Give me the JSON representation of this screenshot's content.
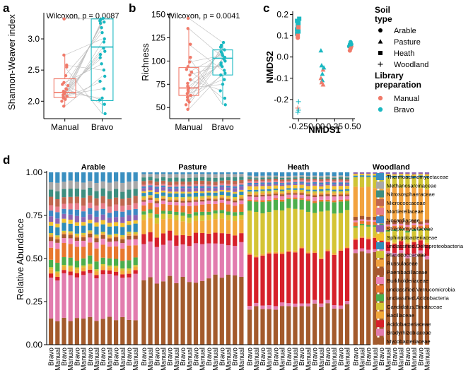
{
  "panel_labels": {
    "a": "a",
    "b": "b",
    "c": "c",
    "d": "d"
  },
  "colors": {
    "manual": "#F07A6A",
    "bravo": "#1AB8C1",
    "grey_lines": "#BDBDBD"
  },
  "chart_data": [
    {
      "panel": "a",
      "type": "box",
      "ylabel": "Shannon-Weaver index",
      "annotation": "Wilcoxon, p = 0.0087",
      "categories": [
        "Manual",
        "Bravo"
      ],
      "ylim": [
        1.72,
        3.42
      ],
      "yticks": [
        2.0,
        2.5,
        3.0
      ],
      "ytick_labels": [
        "2.0",
        "2.5",
        "3.0"
      ],
      "boxes": [
        {
          "name": "Manual",
          "min": 1.92,
          "q1": 2.06,
          "median": 2.14,
          "q3": 2.36,
          "max": 2.75
        },
        {
          "name": "Bravo",
          "min": 1.8,
          "q1": 2.01,
          "median": 2.87,
          "q3": 3.32,
          "max": 3.33
        }
      ],
      "points": {
        "Manual": [
          3.32,
          2.74,
          2.58,
          2.55,
          2.41,
          2.3,
          2.27,
          2.25,
          2.2,
          2.19,
          2.16,
          2.15,
          2.14,
          2.13,
          2.12,
          2.1,
          2.08,
          2.07,
          2.05,
          2.03,
          2.0,
          1.92
        ],
        "Bravo": [
          3.33,
          3.31,
          3.29,
          3.27,
          3.25,
          3.18,
          3.1,
          3.0,
          2.95,
          2.85,
          2.8,
          2.75,
          2.7,
          2.6,
          2.5,
          2.4,
          2.32,
          2.2,
          2.05,
          2.02,
          1.95,
          1.8
        ]
      }
    },
    {
      "panel": "b",
      "type": "box",
      "ylabel": "Richness",
      "annotation": "Wilcoxon, p = 0.0041",
      "categories": [
        "Manual",
        "Bravo"
      ],
      "ylim": [
        38,
        152
      ],
      "yticks": [
        50,
        75,
        100,
        125,
        150
      ],
      "ytick_labels": [
        "50",
        "75",
        "100",
        "125",
        "150"
      ],
      "boxes": [
        {
          "name": "Manual",
          "min": 48,
          "q1": 63,
          "median": 71,
          "q3": 93,
          "max": 135
        },
        {
          "name": "Bravo",
          "min": 53,
          "q1": 85,
          "median": 103,
          "q3": 112,
          "max": 120
        }
      ],
      "points": {
        "Manual": [
          146,
          135,
          118,
          104,
          99,
          94,
          91,
          88,
          85,
          80,
          76,
          73,
          71,
          69,
          67,
          65,
          63,
          61,
          58,
          56,
          53,
          48
        ],
        "Bravo": [
          120,
          117,
          115,
          112,
          110,
          108,
          106,
          104,
          103,
          102,
          100,
          98,
          96,
          94,
          90,
          87,
          85,
          80,
          75,
          68,
          60,
          53
        ]
      }
    },
    {
      "panel": "c",
      "type": "scatter",
      "xlabel": "NMDS1",
      "ylabel": "NMDS2",
      "xlim": [
        -0.33,
        0.53
      ],
      "ylim": [
        -0.29,
        0.215
      ],
      "xticks": [
        -0.25,
        0.0,
        0.25,
        0.5
      ],
      "xtick_labels": [
        "-0.25",
        "0.00",
        "0.25",
        "0.50"
      ],
      "yticks": [
        -0.2,
        -0.1,
        0.0,
        0.1,
        0.2
      ],
      "ytick_labels": [
        "-0.2",
        "-0.1",
        "0.0",
        "0.1",
        "0.2"
      ],
      "points": [
        {
          "x": -0.27,
          "y": 0.17,
          "soil": "Heath",
          "prep": "Bravo"
        },
        {
          "x": -0.24,
          "y": 0.18,
          "soil": "Heath",
          "prep": "Bravo"
        },
        {
          "x": -0.26,
          "y": 0.15,
          "soil": "Heath",
          "prep": "Bravo"
        },
        {
          "x": -0.27,
          "y": 0.13,
          "soil": "Heath",
          "prep": "Bravo"
        },
        {
          "x": -0.25,
          "y": 0.12,
          "soil": "Heath",
          "prep": "Bravo"
        },
        {
          "x": -0.27,
          "y": 0.11,
          "soil": "Heath",
          "prep": "Bravo"
        },
        {
          "x": -0.26,
          "y": 0.1,
          "soil": "Heath",
          "prep": "Manual"
        },
        {
          "x": -0.25,
          "y": 0.14,
          "soil": "Heath",
          "prep": "Manual"
        },
        {
          "x": -0.26,
          "y": 0.09,
          "soil": "Arable",
          "prep": "Manual"
        },
        {
          "x": -0.25,
          "y": 0.16,
          "soil": "Heath",
          "prep": "Bravo"
        },
        {
          "x": 0.06,
          "y": 0.03,
          "soil": "Pasture",
          "prep": "Bravo"
        },
        {
          "x": 0.07,
          "y": -0.04,
          "soil": "Pasture",
          "prep": "Bravo"
        },
        {
          "x": 0.09,
          "y": -0.06,
          "soil": "Pasture",
          "prep": "Manual"
        },
        {
          "x": 0.08,
          "y": -0.08,
          "soil": "Pasture",
          "prep": "Bravo"
        },
        {
          "x": 0.06,
          "y": -0.1,
          "soil": "Pasture",
          "prep": "Manual"
        },
        {
          "x": 0.08,
          "y": -0.11,
          "soil": "Pasture",
          "prep": "Bravo"
        },
        {
          "x": 0.07,
          "y": -0.12,
          "soil": "Pasture",
          "prep": "Manual"
        },
        {
          "x": 0.09,
          "y": -0.13,
          "soil": "Pasture",
          "prep": "Manual"
        },
        {
          "x": 0.1,
          "y": -0.05,
          "soil": "Pasture",
          "prep": "Bravo"
        },
        {
          "x": 0.47,
          "y": 0.07,
          "soil": "Arable",
          "prep": "Bravo"
        },
        {
          "x": 0.46,
          "y": 0.06,
          "soil": "Arable",
          "prep": "Bravo"
        },
        {
          "x": 0.48,
          "y": 0.05,
          "soil": "Arable",
          "prep": "Manual"
        },
        {
          "x": 0.45,
          "y": 0.05,
          "soil": "Arable",
          "prep": "Bravo"
        },
        {
          "x": 0.47,
          "y": 0.04,
          "soil": "Arable",
          "prep": "Manual"
        },
        {
          "x": 0.46,
          "y": 0.03,
          "soil": "Arable",
          "prep": "Manual"
        },
        {
          "x": 0.48,
          "y": 0.06,
          "soil": "Arable",
          "prep": "Bravo"
        },
        {
          "x": -0.25,
          "y": -0.21,
          "soil": "Woodland",
          "prep": "Bravo"
        },
        {
          "x": -0.26,
          "y": -0.24,
          "soil": "Woodland",
          "prep": "Manual"
        },
        {
          "x": -0.25,
          "y": -0.25,
          "soil": "Woodland",
          "prep": "Bravo"
        },
        {
          "x": -0.26,
          "y": -0.26,
          "soil": "Woodland",
          "prep": "Bravo"
        }
      ]
    },
    {
      "panel": "d",
      "type": "stacked_bar",
      "ylabel": "Relative Abundance",
      "ylim": [
        0,
        1
      ],
      "yticks": [
        0,
        0.25,
        0.5,
        0.75,
        1
      ],
      "ytick_labels": [
        "0.00",
        "0.25",
        "0.50",
        "0.75",
        "1.00"
      ],
      "facets": [
        {
          "name": "Arable",
          "samples": [
            "Bravo",
            "Manual",
            "Bravo",
            "Manual",
            "Bravo",
            "Manual",
            "Bravo",
            "Manual",
            "Bravo",
            "Manual",
            "Bravo",
            "Manual",
            "Bravo",
            "Manual"
          ]
        },
        {
          "name": "Pasture",
          "samples": [
            "Bravo",
            "Manual",
            "Bravo",
            "Manual",
            "Bravo",
            "Manual",
            "Bravo",
            "Manual",
            "Bravo",
            "Manual",
            "Bravo",
            "Manual",
            "Bravo",
            "Manual",
            "Bravo",
            "Manual"
          ]
        },
        {
          "name": "Heath",
          "samples": [
            "Bravo",
            "Manual",
            "Bravo",
            "Manual",
            "Bravo",
            "Manual",
            "Bravo",
            "Manual",
            "Bravo",
            "Manual",
            "Bravo",
            "Manual",
            "Bravo",
            "Manual",
            "Bravo",
            "Manual"
          ]
        },
        {
          "name": "Woodland",
          "samples": [
            "Bravo",
            "Manual",
            "Bravo",
            "Manual",
            "Bravo",
            "Manual",
            "Bravo",
            "Manual",
            "Bravo",
            "Manual",
            "Bravo",
            "Manual"
          ]
        }
      ],
      "stack_order": [
        "Mycobacteriaceae",
        "Bradyrhizobiaceae",
        "Acidobacteriaceae",
        "Bacillaceae",
        "Candidatus.Binataceae",
        "unclassified.Acidobacteria",
        "unclassified.Verrucomicrobia",
        "Burkholderiaceae",
        "Paenibacillaceae",
        "Russulaceae",
        "Planococcaceae",
        "unclassified.Deltaproteobacteria",
        "Sphingobacteriaceae",
        "Streptomycetaceae",
        "Nocardiaceae",
        "Mortierellaceae",
        "Micrococcaceae",
        "Nitrososphaeraceae",
        "Methanosarcinaceae",
        "Thermoactinomycetaceae"
      ],
      "legend": [
        {
          "name": "Thermoactinomycetaceae",
          "color": "#3A8FC0"
        },
        {
          "name": "Methanosarcinaceae",
          "color": "#A8A8A8"
        },
        {
          "name": "Nitrososphaeraceae",
          "color": "#3E8E80"
        },
        {
          "name": "Micrococcaceae",
          "color": "#C0664E"
        },
        {
          "name": "Mortierellaceae",
          "color": "#E77C8A"
        },
        {
          "name": "Nocardiaceae",
          "color": "#3F88C4"
        },
        {
          "name": "Streptomycetaceae",
          "color": "#8E63B2"
        },
        {
          "name": "Sphingobacteriaceae",
          "color": "#F2C230"
        },
        {
          "name": "unclassified.Deltaproteobacteria",
          "color": "#2F8CB8"
        },
        {
          "name": "Planococcaceae",
          "color": "#CFC435"
        },
        {
          "name": "Russulaceae",
          "color": "#F2A23E"
        },
        {
          "name": "Paenibacillaceae",
          "color": "#A7562F"
        },
        {
          "name": "Burkholderiaceae",
          "color": "#EC84B6"
        },
        {
          "name": "unclassified.Verrucomicrobia",
          "color": "#E8772E"
        },
        {
          "name": "unclassified.Acidobacteria",
          "color": "#4CAE4C"
        },
        {
          "name": "Candidatus.Binataceae",
          "color": "#D4C434"
        },
        {
          "name": "Bacillaceae",
          "color": "#F3A83B"
        },
        {
          "name": "Acidobacteriaceae",
          "color": "#D6202A"
        },
        {
          "name": "Bradyrhizobiaceae",
          "color": "#E27CAE"
        },
        {
          "name": "Mycobacteriaceae",
          "color": "#A35A2C"
        }
      ],
      "group_profiles": {
        "Arable": [
          0.14,
          0.22,
          0.02,
          0.02,
          0.01,
          0.04,
          0.07,
          0.03,
          0.02,
          0.01,
          0.01,
          0.04,
          0.02,
          0.03,
          0.03,
          0.03,
          0.04,
          0.04,
          0.04,
          0.05
        ],
        "Pasture": [
          0.38,
          0.2,
          0.06,
          0.08,
          0.03,
          0.02,
          0.04,
          0.02,
          0.01,
          0.01,
          0.01,
          0.02,
          0.01,
          0.02,
          0.01,
          0.01,
          0.02,
          0.02,
          0.02,
          0.01
        ],
        "Heath": [
          0.22,
          0.02,
          0.3,
          0.01,
          0.24,
          0.06,
          0.01,
          0.02,
          0.01,
          0.01,
          0.01,
          0.01,
          0.02,
          0.01,
          0.01,
          0.01,
          0.01,
          0.01,
          0.01,
          0.02
        ],
        "Woodland": [
          0.52,
          0.02,
          0.06,
          0.01,
          0.06,
          0.01,
          0.02,
          0.01,
          0.02,
          0.18,
          0.06,
          0.01,
          0.01,
          0.01,
          0.0,
          0.0,
          0.0,
          0.0,
          0.0,
          0.0
        ]
      }
    }
  ],
  "legend_c": {
    "soil_title_1": "Soil",
    "soil_title_2": "type",
    "soil_items": [
      "Arable",
      "Pasture",
      "Heath",
      "Woodland"
    ],
    "prep_title_1": "Library",
    "prep_title_2": "preparation",
    "prep_items": [
      "Manual",
      "Bravo"
    ]
  }
}
